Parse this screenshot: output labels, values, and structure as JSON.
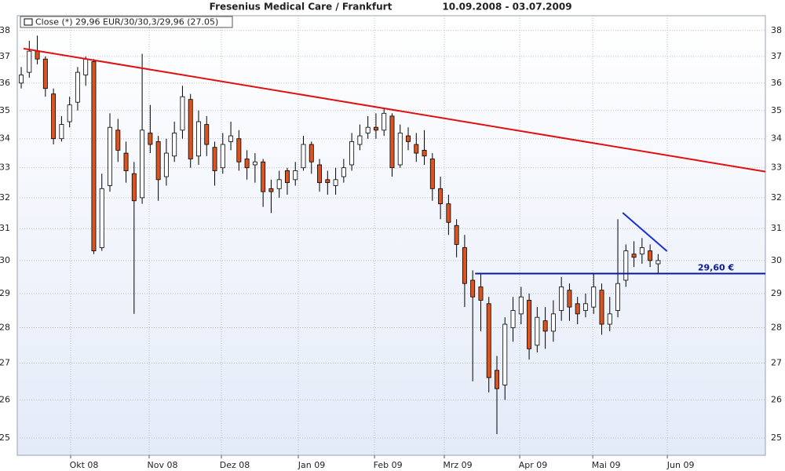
{
  "chart_data": {
    "type": "candlestick",
    "title": "Fresenius Medical Care / Frankfurt",
    "subtitle": "10.09.2008   -   03.07.2009",
    "legend_label": "Close (*) 29,96 EUR/30/30,3/29,96 (27.05)",
    "log_scale": true,
    "grid": true,
    "xlim": [
      -0.49,
      92.3
    ],
    "xticks": [
      {
        "value": 6.13,
        "label": "Okt 08"
      },
      {
        "value": 15.87,
        "label": "Nov 08"
      },
      {
        "value": 24.83,
        "label": "Dez 08"
      },
      {
        "value": 34.37,
        "label": "Jan 09"
      },
      {
        "value": 43.82,
        "label": "Feb 09"
      },
      {
        "value": 52.48,
        "label": "Mrz 09"
      },
      {
        "value": 61.83,
        "label": "Apr 09"
      },
      {
        "value": 70.89,
        "label": "Mai 09"
      },
      {
        "value": 80.14,
        "label": "Jun 09"
      }
    ],
    "ylim": [
      24.56,
      38.58
    ],
    "yticks": [
      25,
      26,
      27,
      28,
      29,
      30,
      31,
      32,
      33,
      34,
      35,
      36,
      37,
      38
    ],
    "up_color": "#ffffff",
    "down_color": "#d9541e",
    "series": {
      "open": [
        36.0,
        36.4,
        37.2,
        36.9,
        35.6,
        34.0,
        34.6,
        35.3,
        36.3,
        36.8,
        30.4,
        32.4,
        34.3,
        33.5,
        32.8,
        32.0,
        34.2,
        33.9,
        32.7,
        33.4,
        34.3,
        35.4,
        33.4,
        34.5,
        33.7,
        33.0,
        33.9,
        34.0,
        33.3,
        33.1,
        33.2,
        32.3,
        32.3,
        32.9,
        32.6,
        33.0,
        33.8,
        33.1,
        32.6,
        32.4,
        32.7,
        33.1,
        33.8,
        34.2,
        34.4,
        34.3,
        34.8,
        33.1,
        34.1,
        33.8,
        33.6,
        33.3,
        32.3,
        31.8,
        31.1,
        30.4,
        29.4,
        29.2,
        28.7,
        26.8,
        26.4,
        28.0,
        28.4,
        28.8,
        27.5,
        28.2,
        27.9,
        28.5,
        29.1,
        28.7,
        28.5,
        28.6,
        29.1,
        28.1,
        28.5,
        29.4,
        30.2,
        30.2,
        30.3,
        29.9
      ],
      "high": [
        36.6,
        37.6,
        37.8,
        37.0,
        35.8,
        34.8,
        35.5,
        36.6,
        37.0,
        36.9,
        32.8,
        34.9,
        34.7,
        33.9,
        33.2,
        37.1,
        35.2,
        34.1,
        34.0,
        34.6,
        35.9,
        35.6,
        35.0,
        34.8,
        33.9,
        34.2,
        34.6,
        34.3,
        33.6,
        33.5,
        33.3,
        32.6,
        32.9,
        33.0,
        33.2,
        34.1,
        33.9,
        33.3,
        32.9,
        33.0,
        33.3,
        34.2,
        34.5,
        34.8,
        34.9,
        35.1,
        34.9,
        34.5,
        34.4,
        34.2,
        34.3,
        33.5,
        32.7,
        32.1,
        31.3,
        30.8,
        29.7,
        29.6,
        28.9,
        27.2,
        28.3,
        28.9,
        29.2,
        29.0,
        28.6,
        28.6,
        28.8,
        29.5,
        29.3,
        28.9,
        29.0,
        29.6,
        29.3,
        28.9,
        31.3,
        30.5,
        30.6,
        30.7,
        30.5,
        30.2
      ],
      "low": [
        35.8,
        36.2,
        36.7,
        35.5,
        33.8,
        33.9,
        34.4,
        35.0,
        35.9,
        30.2,
        30.3,
        32.2,
        33.2,
        32.5,
        28.4,
        31.8,
        33.5,
        31.9,
        32.4,
        33.2,
        34.0,
        33.0,
        33.1,
        33.4,
        32.4,
        32.8,
        33.6,
        32.9,
        32.6,
        32.5,
        31.7,
        31.5,
        32.0,
        32.1,
        32.4,
        32.9,
        32.8,
        32.2,
        32.1,
        32.1,
        32.5,
        32.9,
        33.6,
        34.0,
        34.0,
        34.1,
        32.7,
        33.0,
        33.6,
        33.2,
        33.1,
        31.9,
        31.3,
        30.8,
        30.1,
        28.6,
        26.5,
        27.9,
        26.2,
        25.1,
        26.0,
        27.6,
        28.1,
        27.1,
        27.3,
        27.4,
        27.6,
        28.2,
        28.2,
        28.1,
        28.3,
        28.4,
        27.8,
        27.9,
        28.3,
        29.2,
        29.8,
        29.9,
        29.8,
        29.6
      ],
      "close": [
        36.3,
        37.2,
        36.9,
        35.8,
        34.0,
        34.5,
        35.2,
        36.4,
        36.9,
        30.3,
        32.3,
        34.4,
        33.6,
        32.9,
        31.9,
        34.3,
        33.8,
        32.6,
        33.5,
        34.2,
        35.5,
        33.3,
        34.6,
        33.8,
        32.9,
        33.8,
        34.1,
        33.2,
        33.0,
        33.2,
        32.2,
        32.2,
        32.6,
        32.5,
        32.9,
        33.8,
        33.2,
        32.5,
        32.5,
        32.6,
        33.0,
        33.9,
        34.1,
        34.4,
        34.3,
        34.9,
        33.0,
        34.2,
        33.9,
        33.5,
        33.4,
        32.3,
        31.8,
        31.2,
        30.5,
        29.3,
        28.9,
        28.8,
        26.6,
        26.3,
        28.1,
        28.5,
        28.9,
        27.4,
        28.3,
        27.9,
        28.4,
        29.2,
        28.6,
        28.4,
        28.7,
        29.2,
        28.1,
        28.4,
        29.3,
        30.3,
        30.1,
        30.4,
        30.0,
        30.0
      ]
    },
    "trend_lines": [
      {
        "color": "#e01010",
        "x": [
          0.29,
          92.3
        ],
        "y": [
          37.3,
          32.87
        ]
      },
      {
        "color": "#1a2fd0",
        "x": [
          74.6,
          80.1
        ],
        "y": [
          31.51,
          30.29
        ]
      }
    ],
    "support_line": {
      "color": "#0a1a9a",
      "x": [
        56.3,
        92.3
      ],
      "value": 29.6,
      "label": "29,60 €"
    }
  }
}
